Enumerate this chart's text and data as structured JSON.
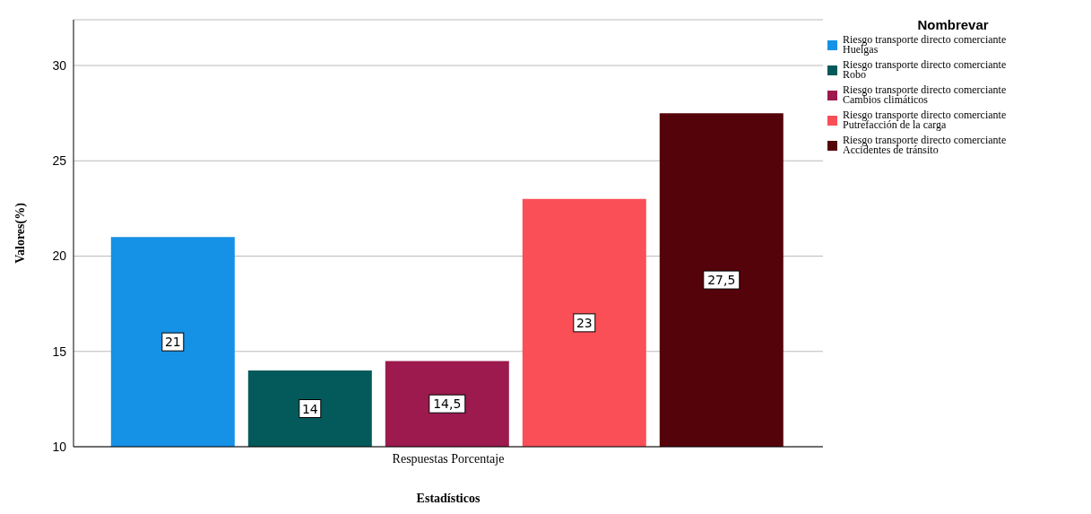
{
  "chart_data": {
    "type": "bar",
    "xlabel": "Estadísticos",
    "ylabel": "Valores(%)",
    "legend_title": "Nombrevar",
    "categories": [
      "Respuestas Porcentaje"
    ],
    "series": [
      {
        "name": "Riesgo transporte directo comerciante Huelgas",
        "color": "#1591e6",
        "values": [
          21
        ]
      },
      {
        "name": "Riesgo transporte directo comerciante Robo",
        "color": "#045a5a",
        "values": [
          14
        ]
      },
      {
        "name": "Riesgo transporte directo comerciante Cambios climáticos",
        "color": "#9c1a4e",
        "values": [
          14.5
        ],
        "value_labels": [
          "14,5"
        ]
      },
      {
        "name": "Riesgo transporte directo comerciante Putrefacción de la carga",
        "color": "#fa4f57",
        "values": [
          23
        ]
      },
      {
        "name": "Riesgo transporte directo comerciante Accidentes de tránsito",
        "color": "#55030a",
        "values": [
          27.5
        ],
        "value_labels": [
          "27,5"
        ]
      }
    ],
    "ylim": [
      10,
      32.4
    ],
    "yticks": [
      10,
      15,
      20,
      25,
      30
    ],
    "grid": "y",
    "legend": "top right",
    "data_labels": true
  }
}
